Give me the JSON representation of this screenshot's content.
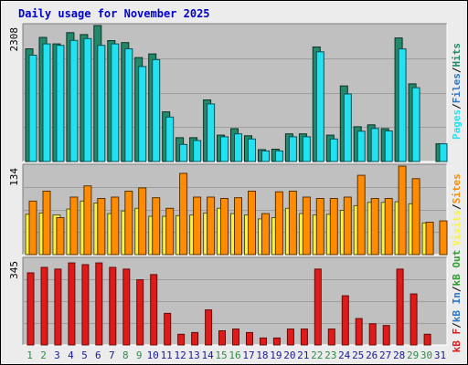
{
  "title": "Daily usage for November 2025",
  "colors": {
    "pages": "#218a6c",
    "files": "#22e2f2",
    "hits": "#218a6c",
    "visits": "#f9f33f",
    "sites": "#ff8c00",
    "kbin": "#2c77c9",
    "kbout": "#2e9e2e",
    "kbf": "#e01919",
    "day_weekday": "#1a1a9a",
    "day_weekend": "#2e8a4a"
  },
  "legend": {
    "top": [
      {
        "text": "Pages",
        "color_key": "files"
      },
      {
        "text": "/",
        "color_key": null
      },
      {
        "text": "Files",
        "color_key": "kbin"
      },
      {
        "text": "/",
        "color_key": null
      },
      {
        "text": "Hits",
        "color_key": "hits"
      }
    ],
    "middle": [
      {
        "text": "Visits",
        "color_key": "visits"
      },
      {
        "text": "/",
        "color_key": null
      },
      {
        "text": "Sites",
        "color_key": "sites"
      }
    ],
    "bottom": [
      {
        "text": "kB F",
        "color_key": "kbf"
      },
      {
        "text": "/",
        "color_key": null
      },
      {
        "text": "kB In",
        "color_key": "kbin"
      },
      {
        "text": "/",
        "color_key": null
      },
      {
        "text": "kB Out",
        "color_key": "kbout"
      }
    ]
  },
  "chart_data": {
    "type": "bar",
    "title": "Daily usage for November 2025",
    "categories": [
      "1",
      "2",
      "3",
      "4",
      "5",
      "6",
      "7",
      "8",
      "9",
      "10",
      "11",
      "12",
      "13",
      "14",
      "15",
      "16",
      "17",
      "18",
      "19",
      "20",
      "21",
      "22",
      "23",
      "24",
      "25",
      "26",
      "27",
      "28",
      "29",
      "30",
      "31"
    ],
    "weekend_days": [
      "1",
      "2",
      "8",
      "9",
      "15",
      "16",
      "22",
      "23",
      "29",
      "30"
    ],
    "panels": [
      {
        "id": "hits_files",
        "ytick": "2308",
        "ylim": [
          0,
          2308
        ],
        "series": [
          {
            "name": "Hits",
            "color_key": "hits",
            "values": [
              1913,
              2106,
              1996,
              2187,
              2154,
              2308,
              2053,
              2019,
              1764,
              1826,
              842,
              404,
              404,
              1046,
              447,
              558,
              437,
              202,
              209,
              470,
              470,
              1944,
              447,
              1283,
              590,
              623,
              558,
              2098,
              1318,
              0,
              300
            ]
          },
          {
            "name": "Files",
            "color_key": "files",
            "values": [
              1804,
              1996,
              1972,
              2056,
              2087,
              1972,
              1996,
              1913,
              1613,
              1728,
              754,
              290,
              356,
              978,
              420,
              470,
              382,
              180,
              180,
              420,
              420,
              1862,
              382,
              1146,
              515,
              561,
              519,
              1912,
              1253,
              0,
              300
            ]
          }
        ]
      },
      {
        "id": "visits_sites",
        "ytick": "134",
        "ylim": [
          0,
          134
        ],
        "series": [
          {
            "name": "Visits",
            "color_key": "visits",
            "values": [
              61,
              63,
              60,
              69,
              81,
              78,
              62,
              66,
              70,
              58,
              58,
              59,
              60,
              63,
              70,
              62,
              60,
              54,
              56,
              70,
              62,
              60,
              61,
              67,
              74,
              79,
              79,
              80,
              77,
              48,
              0
            ]
          },
          {
            "name": "Sites",
            "color_key": "sites",
            "values": [
              81,
              96,
              56,
              87,
              104,
              85,
              87,
              96,
              101,
              86,
              70,
              123,
              87,
              87,
              85,
              86,
              96,
              62,
              95,
              96,
              87,
              85,
              85,
              87,
              120,
              85,
              85,
              134,
              115,
              49,
              51
            ]
          }
        ]
      },
      {
        "id": "kbf",
        "ytick": "345",
        "ylim": [
          0,
          345
        ],
        "series": [
          {
            "name": "kB F",
            "color_key": "kbf",
            "values": [
              290,
              312,
              305,
              330,
              323,
              330,
              312,
              305,
              262,
              283,
              127,
              43,
              50,
              141,
              57,
              64,
              50,
              28,
              28,
              64,
              64,
              305,
              64,
              198,
              106,
              85,
              78,
              305,
              205,
              43,
              0
            ]
          }
        ]
      }
    ]
  }
}
